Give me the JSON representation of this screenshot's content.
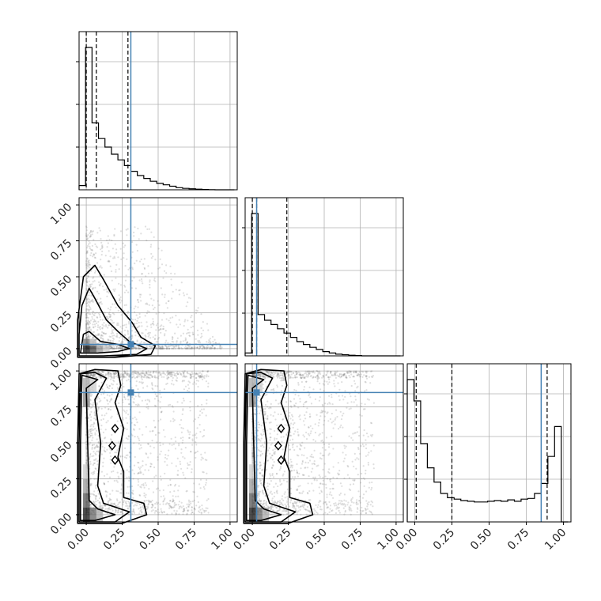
{
  "chart_data": {
    "type": "corner",
    "grid": true,
    "colors": {
      "truth": "#4682b4",
      "hist": "#000000",
      "scatter": "#808080",
      "grid": "#b0b0b0"
    },
    "tick_labels": [
      "0.00",
      "0.25",
      "0.50",
      "0.75",
      "1.00"
    ],
    "parameters": [
      {
        "range": [
          -0.05,
          1.05
        ],
        "ticks": [
          0,
          0.25,
          0.5,
          0.75,
          1.0
        ],
        "quantiles": [
          0.0,
          0.07,
          0.29
        ],
        "truth": 0.31,
        "hist": {
          "edges": [
            -0.05,
            -0.005,
            0.04,
            0.085,
            0.13,
            0.175,
            0.22,
            0.265,
            0.31,
            0.355,
            0.4,
            0.445,
            0.49,
            0.535,
            0.58,
            0.625,
            0.67,
            0.715,
            0.76,
            0.805,
            0.85,
            0.895,
            0.94,
            0.985,
            1.03
          ],
          "counts": [
            0.03,
            1.0,
            0.47,
            0.36,
            0.3,
            0.25,
            0.21,
            0.17,
            0.13,
            0.1,
            0.08,
            0.06,
            0.045,
            0.035,
            0.025,
            0.015,
            0.01,
            0.007,
            0.004,
            0.002,
            0.001,
            0.0,
            0.0,
            0.0
          ]
        }
      },
      {
        "range": [
          -0.05,
          1.05
        ],
        "ticks": [
          0,
          0.25,
          0.5,
          0.75,
          1.0
        ],
        "quantiles": [
          0.0,
          0.03,
          0.24
        ],
        "truth": 0.03,
        "hist": {
          "edges": [
            -0.05,
            -0.005,
            0.04,
            0.085,
            0.13,
            0.175,
            0.22,
            0.265,
            0.31,
            0.355,
            0.4,
            0.445,
            0.49,
            0.535,
            0.58,
            0.625,
            0.67,
            0.715,
            0.76,
            0.805,
            0.85,
            0.895,
            0.94,
            0.985,
            1.03
          ],
          "counts": [
            0.02,
            1.0,
            0.29,
            0.25,
            0.22,
            0.19,
            0.16,
            0.13,
            0.1,
            0.08,
            0.06,
            0.045,
            0.03,
            0.02,
            0.012,
            0.008,
            0.004,
            0.002,
            0.0,
            0.0,
            0.0,
            0.0,
            0.0,
            0.0
          ]
        }
      },
      {
        "range": [
          -0.05,
          1.05
        ],
        "ticks": [
          0,
          0.25,
          0.5,
          0.75,
          1.0
        ],
        "quantiles": [
          0.01,
          0.25,
          0.89
        ],
        "truth": 0.85,
        "hist": {
          "edges": [
            -0.05,
            -0.005,
            0.04,
            0.085,
            0.13,
            0.175,
            0.22,
            0.265,
            0.31,
            0.355,
            0.4,
            0.445,
            0.49,
            0.535,
            0.58,
            0.625,
            0.67,
            0.715,
            0.76,
            0.805,
            0.85,
            0.895,
            0.94,
            0.985,
            1.03
          ],
          "counts": [
            1.0,
            0.85,
            0.55,
            0.38,
            0.28,
            0.2,
            0.17,
            0.16,
            0.15,
            0.145,
            0.14,
            0.14,
            0.145,
            0.15,
            0.145,
            0.155,
            0.145,
            0.16,
            0.165,
            0.2,
            0.27,
            0.46,
            0.67,
            0.0
          ]
        }
      }
    ],
    "panels_2d": [
      {
        "row": 1,
        "col": 0,
        "mode": "A"
      },
      {
        "row": 2,
        "col": 0,
        "mode": "B"
      },
      {
        "row": 2,
        "col": 1,
        "mode": "B"
      }
    ]
  }
}
